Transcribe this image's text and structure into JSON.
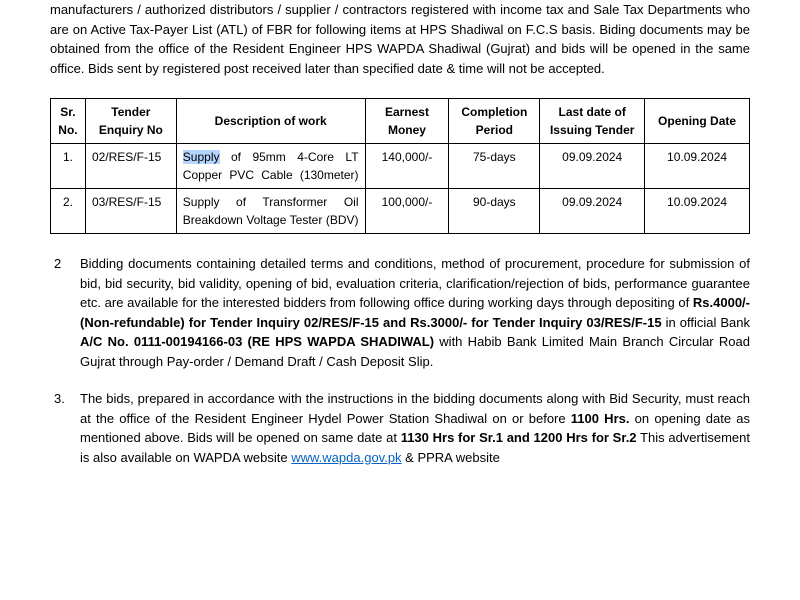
{
  "intro": {
    "line1": "manufacturers / authorized distributors / supplier / contractors registered with income tax and Sale Tax Departments who are on Active Tax-Payer List (ATL) of FBR for following items at HPS Shadiwal on F.C.S basis. Biding documents may be obtained from the office of the Resident Engineer HPS WAPDA Shadiwal (Gujrat) and bids will be opened in the same office. Bids sent by registered post received later than specified date & time will not be accepted."
  },
  "table": {
    "headers": {
      "sr": "Sr. No.",
      "enquiry": "Tender Enquiry No",
      "desc": "Description of work",
      "earnest": "Earnest Money",
      "completion": "Completion Period",
      "issuing": "Last date of Issuing Tender",
      "opening": "Opening Date"
    },
    "rows": [
      {
        "sr": "1.",
        "enquiry": "02/RES/F-15",
        "desc_prefix": "Supply",
        "desc_rest": " of 95mm 4-Core LT Copper PVC Cable (130meter)",
        "earnest": "140,000/-",
        "completion": "75-days",
        "issuing": "09.09.2024",
        "opening": "10.09.2024"
      },
      {
        "sr": "2.",
        "enquiry": "03/RES/F-15",
        "desc_full": "Supply of Transformer Oil Breakdown Voltage Tester (BDV)",
        "earnest": "100,000/-",
        "completion": "90-days",
        "issuing": "09.09.2024",
        "opening": "10.09.2024"
      }
    ]
  },
  "section2": {
    "num": "2",
    "part1": "Bidding documents containing detailed terms and conditions, method of procurement, procedure for submission of bid, bid security, bid validity, opening of bid, evaluation criteria, clarification/rejection of bids, performance guarantee etc. are available for the interested bidders from following office during working days through depositing of ",
    "bold1": "Rs.4000/- (Non-refundable) for Tender Inquiry 02/RES/F-15 and Rs.3000/- for Tender Inquiry 03/RES/F-15",
    "mid1": " in official Bank ",
    "bold2": "A/C No. 0111-00194166-03 (RE HPS WAPDA SHADIWAL)",
    "part2": " with Habib Bank Limited Main Branch Circular Road Gujrat through Pay-order / Demand Draft / Cash Deposit Slip."
  },
  "section3": {
    "num": "3.",
    "part1": "The bids, prepared in accordance with the instructions in the bidding documents along with Bid Security, must reach at the office of the Resident Engineer Hydel Power Station Shadiwal on or before ",
    "bold1": "1100 Hrs.",
    "mid1": " on opening date as mentioned above. Bids will be opened on same date at ",
    "bold2": "1130 Hrs for Sr.1 and 1200 Hrs for Sr.2",
    "tail_plain": " This advertisement is also available on WAPDA website ",
    "link": "www.wapda.gov.pk",
    "tail2": " & PPRA website"
  }
}
